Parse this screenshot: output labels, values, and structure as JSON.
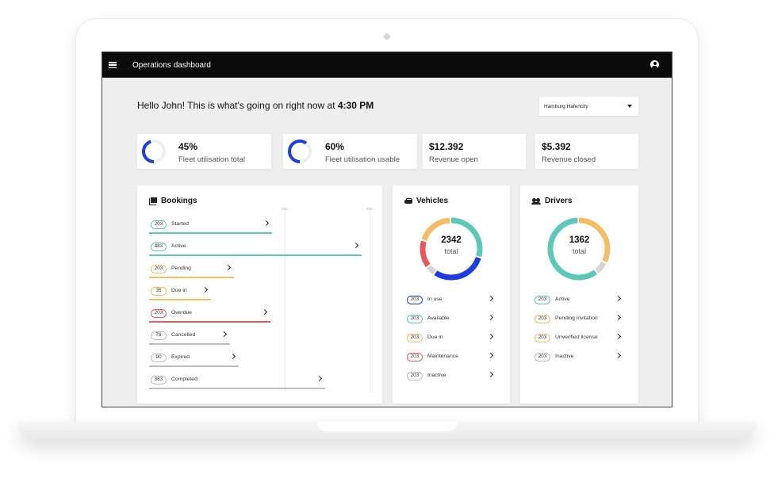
{
  "topbar": {
    "title": "Operations dashboard"
  },
  "greeting": {
    "prefix": "Hello John! This is what's going on right now at ",
    "time": "4:30 PM"
  },
  "location_select": {
    "value": "Hamburg Hafencity"
  },
  "stats": [
    {
      "value": "45%",
      "label": "Fleet utilisation total",
      "progress": 0.45
    },
    {
      "value": "60%",
      "label": "Fleet utilisation usable",
      "progress": 0.6
    },
    {
      "value": "$12.392",
      "label": "Revenue open"
    },
    {
      "value": "$5.392",
      "label": "Revenue closed"
    }
  ],
  "bookings": {
    "title": "Bookings",
    "rows": [
      {
        "count": "203",
        "label": "Started",
        "color": "#5ec8b8",
        "fraction": 0.58
      },
      {
        "count": "483",
        "label": "Active",
        "color": "#5ec8b8",
        "fraction": 1.0
      },
      {
        "count": "203",
        "label": "Pending",
        "color": "#f3be65",
        "fraction": 0.4
      },
      {
        "count": "35",
        "label": "Due in",
        "color": "#f3be65",
        "fraction": 0.29
      },
      {
        "count": "203",
        "label": "Overdue",
        "color": "#e8595d",
        "fraction": 0.57
      },
      {
        "count": "78",
        "label": "Cancelled",
        "color": "#bdbdbd",
        "fraction": 0.38
      },
      {
        "count": "90",
        "label": "Expired",
        "color": "#bdbdbd",
        "fraction": 0.42
      },
      {
        "count": "383",
        "label": "Completed",
        "color": "#bdbdbd",
        "fraction": 0.83
      }
    ]
  },
  "vehicles": {
    "title": "Vehicles",
    "total": "2342",
    "total_label": "total",
    "segments": [
      {
        "color": "#5ec8b8",
        "fraction": 0.3
      },
      {
        "color": "#1f3ddc",
        "fraction": 0.3
      },
      {
        "color": "#d6d6d6",
        "fraction": 0.05
      },
      {
        "color": "#e8595d",
        "fraction": 0.15
      },
      {
        "color": "#f3be65",
        "fraction": 0.2
      }
    ],
    "rows": [
      {
        "count": "203",
        "label": "In use",
        "color": "#1f3ddc"
      },
      {
        "count": "203",
        "label": "Available",
        "color": "#5ec8b8"
      },
      {
        "count": "203",
        "label": "Due in",
        "color": "#f3be65"
      },
      {
        "count": "203",
        "label": "Maintenance",
        "color": "#e8595d"
      },
      {
        "count": "203",
        "label": "Inactive",
        "color": "#bdbdbd"
      }
    ]
  },
  "drivers": {
    "title": "Drivers",
    "total": "1362",
    "total_label": "total",
    "segments": [
      {
        "color": "#f3be65",
        "fraction": 0.33
      },
      {
        "color": "#d6d6d6",
        "fraction": 0.07
      },
      {
        "color": "#5ec8b8",
        "fraction": 0.6
      }
    ],
    "rows": [
      {
        "count": "203",
        "label": "Active",
        "color": "#5ec8b8"
      },
      {
        "count": "203",
        "label": "Pending invitation",
        "color": "#f3be65"
      },
      {
        "count": "203",
        "label": "Unverified license",
        "color": "#f3be65"
      },
      {
        "count": "203",
        "label": "Inactive",
        "color": "#bdbdbd"
      }
    ]
  }
}
